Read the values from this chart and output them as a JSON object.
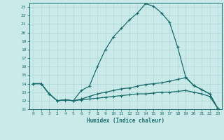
{
  "xlabel": "Humidex (Indice chaleur)",
  "bg_color": "#caeaea",
  "grid_color": "#b0d8d8",
  "line_color": "#1a6b6b",
  "xlim": [
    -0.5,
    23.5
  ],
  "ylim": [
    11,
    23.5
  ],
  "xticks": [
    0,
    1,
    2,
    3,
    4,
    5,
    6,
    7,
    8,
    9,
    10,
    11,
    12,
    13,
    14,
    15,
    16,
    17,
    18,
    19,
    20,
    21,
    22,
    23
  ],
  "yticks": [
    11,
    12,
    13,
    14,
    15,
    16,
    17,
    18,
    19,
    20,
    21,
    22,
    23
  ],
  "line1_y": [
    14.0,
    14.0,
    12.8,
    12.0,
    12.1,
    12.0,
    13.2,
    13.7,
    16.0,
    18.0,
    19.5,
    20.5,
    21.5,
    22.3,
    23.4,
    23.1,
    22.3,
    21.2,
    18.3,
    14.8,
    13.8,
    13.3,
    12.8,
    11.1
  ],
  "line2_y": [
    14.0,
    14.0,
    12.8,
    12.0,
    12.1,
    12.0,
    12.2,
    12.5,
    12.8,
    13.0,
    13.2,
    13.4,
    13.5,
    13.7,
    13.9,
    14.0,
    14.1,
    14.3,
    14.5,
    14.7,
    13.8,
    13.3,
    12.8,
    11.1
  ],
  "line3_y": [
    14.0,
    14.0,
    12.8,
    12.0,
    12.1,
    12.0,
    12.1,
    12.2,
    12.3,
    12.4,
    12.5,
    12.6,
    12.7,
    12.8,
    12.8,
    12.9,
    13.0,
    13.0,
    13.1,
    13.2,
    13.0,
    12.8,
    12.5,
    11.1
  ]
}
